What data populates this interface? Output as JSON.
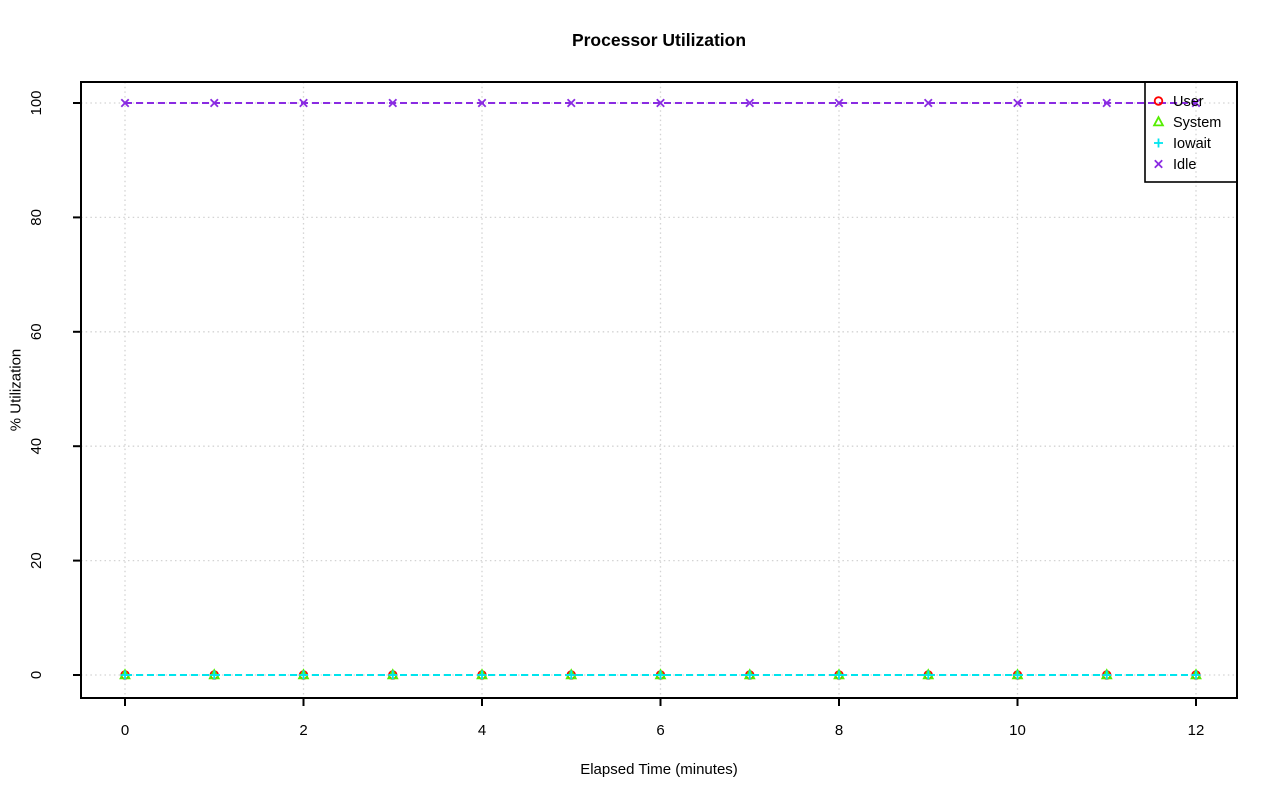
{
  "chart_data": {
    "type": "line",
    "title": "Processor Utilization",
    "xlabel": "Elapsed Time (minutes)",
    "ylabel": "% Utilization",
    "x": [
      0,
      1,
      2,
      3,
      4,
      5,
      6,
      7,
      8,
      9,
      10,
      11,
      12
    ],
    "series": [
      {
        "name": "User",
        "color": "#FF0000",
        "marker": "circle",
        "linestyle": "dashed",
        "values": [
          0,
          0,
          0,
          0,
          0,
          0,
          0,
          0,
          0,
          0,
          0,
          0,
          0
        ]
      },
      {
        "name": "System",
        "color": "#55EE00",
        "marker": "triangle",
        "linestyle": "dashed",
        "values": [
          0,
          0,
          0,
          0,
          0,
          0,
          0,
          0,
          0,
          0,
          0,
          0,
          0
        ]
      },
      {
        "name": "Iowait",
        "color": "#00E5EE",
        "marker": "plus",
        "linestyle": "dashed",
        "values": [
          0,
          0,
          0,
          0,
          0,
          0,
          0,
          0,
          0,
          0,
          0,
          0,
          0
        ]
      },
      {
        "name": "Idle",
        "color": "#8A2BE2",
        "marker": "x",
        "linestyle": "dashed",
        "values": [
          100,
          100,
          100,
          100,
          100,
          100,
          100,
          100,
          100,
          100,
          100,
          100,
          100
        ]
      }
    ],
    "xlim": [
      0,
      12
    ],
    "ylim": [
      0,
      100
    ],
    "x_ticks": [
      0,
      2,
      4,
      6,
      8,
      10,
      12
    ],
    "x_tick_labels": [
      "0",
      "2",
      "4",
      "6",
      "8",
      "10",
      "12"
    ],
    "y_ticks": [
      0,
      20,
      40,
      60,
      80,
      100
    ],
    "y_tick_labels": [
      "0",
      "20",
      "40",
      "60",
      "80",
      "100"
    ],
    "grid": "dotted",
    "grid_color": "#D3D3D3",
    "axis_color": "#000000",
    "legend_position": "top-right",
    "legend_entries": [
      "User",
      "System",
      "Iowait",
      "Idle"
    ]
  }
}
